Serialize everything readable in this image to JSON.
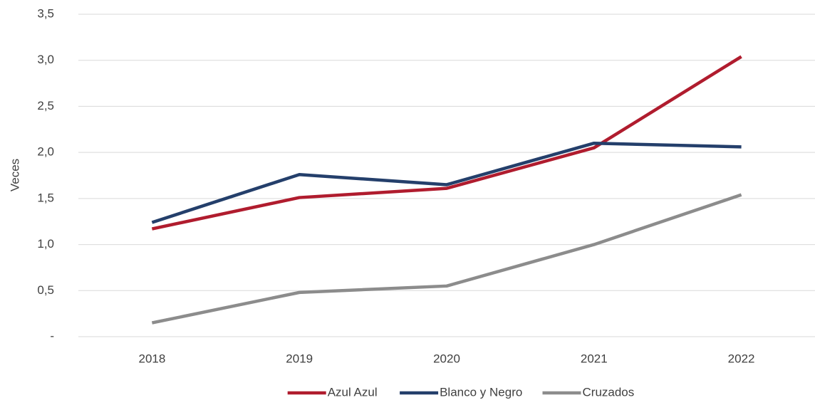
{
  "chart_data": {
    "type": "line",
    "y_label": "Veces",
    "categories": [
      "2018",
      "2019",
      "2020",
      "2021",
      "2022"
    ],
    "series": [
      {
        "name": "Azul Azul",
        "color": "#b01c2e",
        "values": [
          1.17,
          1.51,
          1.61,
          2.05,
          3.04
        ]
      },
      {
        "name": "Blanco y Negro",
        "color": "#243f6b",
        "values": [
          1.24,
          1.76,
          1.65,
          2.1,
          2.06
        ]
      },
      {
        "name": "Cruzados",
        "color": "#8c8c8c",
        "values": [
          0.15,
          0.48,
          0.55,
          1.0,
          1.54
        ]
      }
    ],
    "ylim": [
      0,
      3.5
    ],
    "yticks": [
      {
        "value": 0,
        "label": "-"
      },
      {
        "value": 0.5,
        "label": "0,5"
      },
      {
        "value": 1,
        "label": "1,0"
      },
      {
        "value": 1.5,
        "label": "1,5"
      },
      {
        "value": 2,
        "label": "2,0"
      },
      {
        "value": 2.5,
        "label": "2,5"
      },
      {
        "value": 3,
        "label": "3,0"
      },
      {
        "value": 3.5,
        "label": "3,5"
      }
    ],
    "grid": true,
    "legend": "bottom"
  }
}
